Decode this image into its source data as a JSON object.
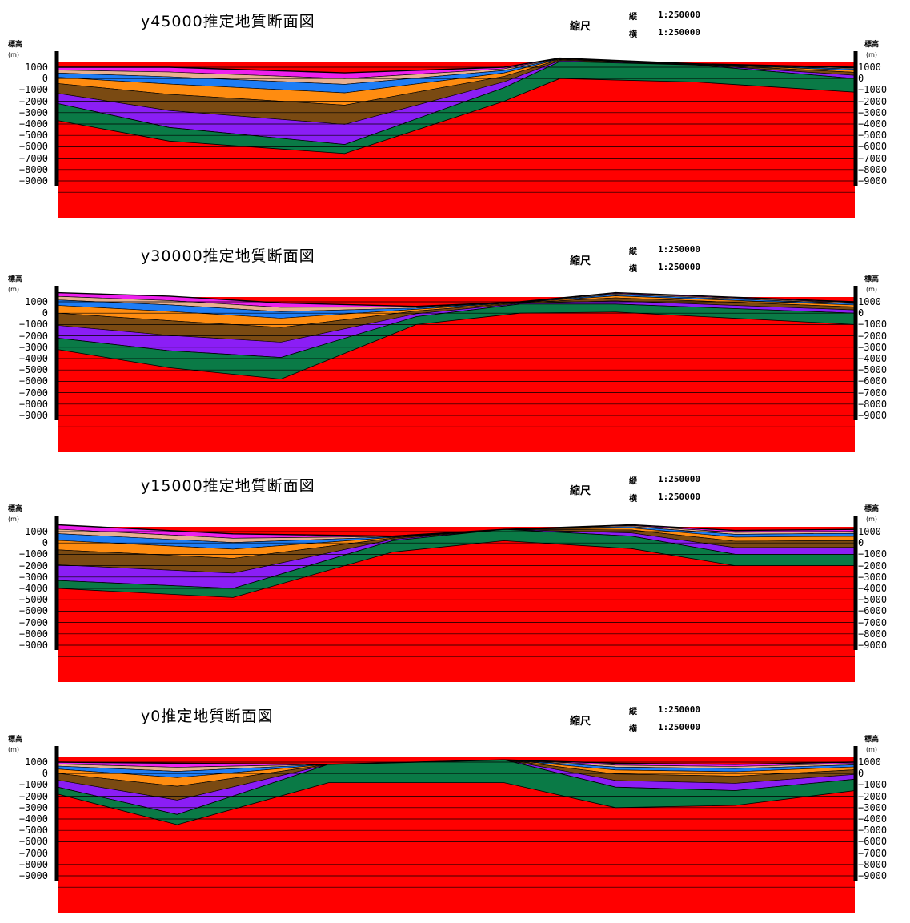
{
  "colors": {
    "basement_red": "#ff0000",
    "green_layer": "#0a7a46",
    "purple_layer": "#8b1ef5",
    "brown_layer": "#7a4a12",
    "orange_layer": "#ff8c10",
    "blue_layer": "#1e7df5",
    "tan_layer": "#e8b090",
    "magenta_layer": "#ee20ee",
    "line": "#000000"
  },
  "axis": {
    "title": "標高",
    "unit": "(m)",
    "ticks": [
      "1000",
      "0",
      "−1000",
      "−2000",
      "−3000",
      "−4000",
      "−5000",
      "−6000",
      "−7000",
      "−8000",
      "−9000"
    ]
  },
  "sections": [
    {
      "title": "y45000推定地質断面図",
      "scale_label": "縮尺",
      "scale_vertical_key": "縦",
      "scale_vertical_value": "1:250000",
      "scale_horizontal_key": "横",
      "scale_horizontal_value": "1:250000",
      "profile": {
        "x": [
          0,
          0.14,
          0.36,
          0.56,
          0.63,
          0.8,
          1.0
        ],
        "top": [
          1000,
          1000,
          500,
          1000,
          1800,
          1300,
          1000
        ],
        "green_top": [
          -2200,
          -4300,
          -5800,
          -800,
          1500,
          1200,
          0
        ],
        "red_top": [
          -3700,
          -5500,
          -6600,
          -2000,
          0,
          -300,
          -1200
        ]
      }
    },
    {
      "title": "y30000推定地質断面図",
      "scale_label": "縮尺",
      "scale_vertical_key": "縦",
      "scale_vertical_value": "1:250000",
      "scale_horizontal_key": "横",
      "scale_horizontal_value": "1:250000",
      "profile": {
        "x": [
          0,
          0.14,
          0.28,
          0.45,
          0.58,
          0.7,
          1.0
        ],
        "top": [
          1800,
          1500,
          900,
          600,
          1000,
          1800,
          1000
        ],
        "green_top": [
          -2200,
          -3300,
          -3900,
          -300,
          800,
          800,
          0
        ],
        "red_top": [
          -3200,
          -4800,
          -5800,
          -1000,
          0,
          100,
          -1000
        ]
      }
    },
    {
      "title": "y15000推定地質断面図",
      "scale_label": "縮尺",
      "scale_vertical_key": "縦",
      "scale_vertical_value": "1:250000",
      "scale_horizontal_key": "横",
      "scale_horizontal_value": "1:250000",
      "profile": {
        "x": [
          0,
          0.22,
          0.42,
          0.56,
          0.72,
          0.85,
          1.0
        ],
        "top": [
          1600,
          800,
          600,
          1200,
          1600,
          1100,
          1200
        ],
        "green_top": [
          -3300,
          -4000,
          200,
          1200,
          600,
          -1000,
          -1000
        ],
        "red_top": [
          -4000,
          -4800,
          -800,
          200,
          -500,
          -2000,
          -2000
        ]
      }
    },
    {
      "title": "y0推定地質断面図",
      "scale_label": "縮尺",
      "scale_vertical_key": "縦",
      "scale_vertical_value": "1:250000",
      "scale_horizontal_key": "横",
      "scale_horizontal_value": "1:250000",
      "profile": {
        "x": [
          0,
          0.15,
          0.34,
          0.56,
          0.7,
          0.85,
          1.0
        ],
        "top": [
          1000,
          900,
          800,
          1200,
          900,
          800,
          1000
        ],
        "green_top": [
          -1200,
          -3600,
          800,
          1200,
          -1200,
          -1500,
          -500
        ],
        "red_top": [
          -1800,
          -4500,
          -800,
          -800,
          -3000,
          -2800,
          -1500
        ]
      }
    }
  ]
}
